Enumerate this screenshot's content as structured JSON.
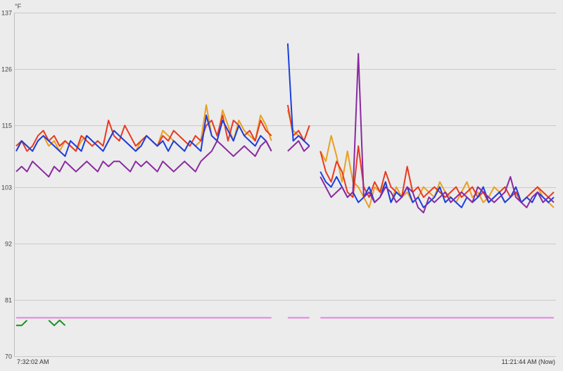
{
  "chart_data": {
    "type": "line",
    "title": "",
    "ylabel": "°F",
    "xlabel": "",
    "ylim": [
      70,
      137
    ],
    "yticks": [
      70,
      81,
      92,
      103,
      115,
      126,
      137
    ],
    "x_start_label": "7:32:02 AM",
    "x_end_label": "11:21:44 AM (Now)",
    "grid": true,
    "legend": "none",
    "series": [
      {
        "color": "#e8a020",
        "values": [
          110,
          112,
          111,
          110,
          112,
          113,
          111,
          112,
          110,
          112,
          111,
          110,
          112,
          113,
          112,
          111,
          110,
          112,
          114,
          113,
          112,
          111,
          110,
          112,
          113,
          112,
          111,
          114,
          113,
          112,
          111,
          110,
          112,
          111,
          112,
          119,
          113,
          112,
          118,
          115,
          112,
          116,
          114,
          113,
          112,
          117,
          115,
          112,
          null,
          null,
          118,
          114,
          113,
          112,
          115,
          null,
          110,
          108,
          113,
          109,
          104,
          110,
          104,
          103,
          101,
          99,
          103,
          102,
          104,
          100,
          103,
          101,
          102,
          100,
          101,
          103,
          102,
          101,
          104,
          102,
          101,
          100,
          102,
          104,
          101,
          102,
          100,
          101,
          103,
          102,
          100,
          101,
          102,
          100,
          101,
          102,
          103,
          101,
          100,
          99
        ]
      },
      {
        "color": "#e83a20",
        "values": [
          111,
          112,
          110,
          111,
          113,
          114,
          112,
          113,
          111,
          112,
          111,
          110,
          113,
          112,
          111,
          112,
          111,
          116,
          113,
          112,
          115,
          113,
          111,
          112,
          113,
          112,
          111,
          113,
          112,
          114,
          113,
          112,
          111,
          113,
          112,
          115,
          116,
          113,
          117,
          112,
          116,
          115,
          113,
          114,
          112,
          116,
          114,
          113,
          null,
          null,
          119,
          113,
          114,
          112,
          115,
          null,
          110,
          106,
          104,
          108,
          106,
          102,
          101,
          111,
          103,
          101,
          104,
          102,
          106,
          103,
          102,
          101,
          107,
          102,
          103,
          101,
          102,
          103,
          102,
          101,
          102,
          103,
          101,
          102,
          103,
          101,
          102,
          100,
          101,
          102,
          103,
          101,
          102,
          100,
          101,
          102,
          103,
          102,
          101,
          102
        ]
      },
      {
        "color": "#1a3fe0",
        "values": [
          110,
          112,
          111,
          110,
          112,
          113,
          112,
          111,
          110,
          109,
          112,
          111,
          110,
          113,
          112,
          111,
          110,
          112,
          114,
          113,
          112,
          111,
          110,
          111,
          113,
          112,
          111,
          112,
          110,
          112,
          111,
          110,
          112,
          111,
          110,
          117,
          113,
          112,
          116,
          114,
          112,
          115,
          113,
          112,
          111,
          113,
          112,
          110,
          null,
          null,
          131,
          112,
          113,
          112,
          111,
          null,
          106,
          104,
          103,
          105,
          103,
          101,
          102,
          100,
          101,
          103,
          100,
          101,
          104,
          100,
          102,
          101,
          103,
          100,
          101,
          99,
          100,
          101,
          103,
          100,
          101,
          100,
          99,
          101,
          100,
          101,
          103,
          100,
          101,
          102,
          100,
          101,
          103,
          100,
          101,
          100,
          102,
          101,
          100,
          101
        ]
      },
      {
        "color": "#8a2aa0",
        "values": [
          106,
          107,
          106,
          108,
          107,
          106,
          105,
          107,
          106,
          108,
          107,
          106,
          107,
          108,
          107,
          106,
          108,
          107,
          108,
          108,
          107,
          106,
          108,
          107,
          108,
          107,
          106,
          108,
          107,
          106,
          107,
          108,
          107,
          106,
          108,
          109,
          110,
          112,
          111,
          110,
          109,
          110,
          111,
          110,
          109,
          111,
          112,
          110,
          null,
          null,
          110,
          111,
          112,
          110,
          111,
          null,
          105,
          103,
          101,
          102,
          103,
          101,
          102,
          129,
          101,
          102,
          100,
          101,
          103,
          102,
          100,
          101,
          103,
          102,
          99,
          98,
          101,
          100,
          101,
          102,
          100,
          101,
          102,
          101,
          100,
          103,
          102,
          101,
          100,
          101,
          102,
          105,
          101,
          100,
          99,
          101,
          102,
          100,
          101,
          100
        ]
      },
      {
        "color": "#1a9020",
        "values": [
          76,
          76,
          77,
          null,
          null,
          null,
          77,
          76,
          77,
          76,
          null,
          null,
          null,
          null,
          null,
          null,
          null,
          null,
          null,
          null,
          null,
          null,
          null,
          null,
          null,
          null,
          null,
          null,
          null,
          null,
          null,
          null,
          null,
          null,
          null,
          null,
          null,
          null,
          null,
          null,
          null,
          null,
          null,
          null,
          null,
          null,
          null,
          null,
          null,
          null,
          null,
          null,
          null,
          null,
          null,
          null,
          null,
          null,
          null,
          null,
          null,
          null,
          null,
          null,
          null,
          null,
          null,
          null,
          null,
          null,
          null,
          null,
          null,
          null,
          null,
          null,
          null,
          null,
          null,
          null,
          null,
          null,
          null,
          null,
          null,
          null,
          null,
          null,
          null,
          null,
          null,
          null,
          null,
          null,
          null,
          null,
          null,
          null,
          null,
          null
        ]
      },
      {
        "color": "#e880e8",
        "values": [
          77.5,
          77.5,
          77.5,
          77.5,
          77.5,
          77.5,
          77.5,
          77.5,
          77.5,
          77.5,
          77.5,
          77.5,
          77.5,
          77.5,
          77.5,
          77.5,
          77.5,
          77.5,
          77.5,
          77.5,
          77.5,
          77.5,
          77.5,
          77.5,
          77.5,
          77.5,
          77.5,
          77.5,
          77.5,
          77.5,
          77.5,
          77.5,
          77.5,
          77.5,
          77.5,
          77.5,
          77.5,
          77.5,
          77.5,
          77.5,
          77.5,
          77.5,
          77.5,
          77.5,
          77.5,
          77.5,
          77.5,
          77.5,
          null,
          null,
          77.5,
          77.5,
          77.5,
          77.5,
          77.5,
          null,
          77.5,
          77.5,
          77.5,
          77.5,
          77.5,
          77.5,
          77.5,
          77.5,
          77.5,
          77.5,
          77.5,
          77.5,
          77.5,
          77.5,
          77.5,
          77.5,
          77.5,
          77.5,
          77.5,
          77.5,
          77.5,
          77.5,
          77.5,
          77.5,
          77.5,
          77.5,
          77.5,
          77.5,
          77.5,
          77.5,
          77.5,
          77.5,
          77.5,
          77.5,
          77.5,
          77.5,
          77.5,
          77.5,
          77.5,
          77.5,
          77.5,
          77.5,
          77.5,
          77.5
        ]
      }
    ]
  }
}
